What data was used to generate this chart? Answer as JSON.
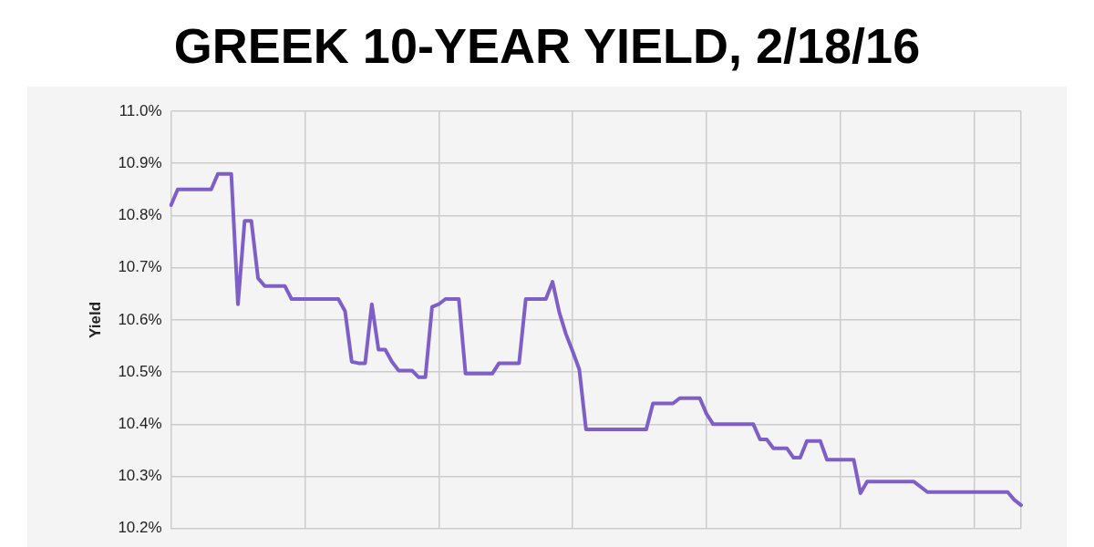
{
  "chart_data": {
    "type": "line",
    "title": "GREEK 10-YEAR YIELD, 2/18/16",
    "ylabel": "Yield",
    "categories": [
      null,
      null,
      null,
      null,
      null,
      null,
      null,
      null,
      null,
      null,
      null,
      null,
      null,
      null,
      null,
      null,
      null,
      null,
      null,
      null,
      null,
      null,
      null,
      null,
      null,
      null,
      null,
      null,
      null,
      null,
      null,
      null,
      null,
      null,
      null,
      null,
      null,
      null,
      null,
      null,
      null,
      null,
      null,
      null,
      null,
      null,
      null,
      null,
      null,
      null,
      null,
      null,
      null,
      null,
      null,
      null,
      null,
      null,
      null,
      null,
      null,
      null,
      null,
      null,
      null,
      null,
      null,
      null,
      null,
      null,
      null,
      null,
      null,
      null,
      null,
      null,
      null,
      null,
      null,
      null,
      null,
      null,
      null,
      null,
      null,
      null,
      null,
      null,
      null,
      null,
      null,
      null,
      null,
      null,
      null,
      null,
      null,
      null,
      null,
      null,
      null,
      null,
      null,
      null,
      null,
      null,
      null,
      null,
      null,
      null,
      null,
      null,
      null,
      null,
      null,
      null,
      null,
      null,
      null,
      null,
      null,
      null,
      null,
      null,
      null,
      null,
      null,
      null
    ],
    "series": [
      {
        "color": "#7e5fc8",
        "values": [
          10.82,
          10.85,
          10.85,
          10.85,
          10.85,
          10.85,
          10.85,
          10.88,
          10.88,
          10.88,
          10.63,
          10.79,
          10.79,
          10.68,
          10.665,
          10.665,
          10.665,
          10.665,
          10.64,
          10.64,
          10.64,
          10.64,
          10.64,
          10.64,
          10.64,
          10.64,
          10.617,
          10.52,
          10.517,
          10.517,
          10.63,
          10.543,
          10.543,
          10.52,
          10.503,
          10.503,
          10.503,
          10.49,
          10.49,
          10.625,
          10.63,
          10.64,
          10.64,
          10.64,
          10.497,
          10.497,
          10.497,
          10.497,
          10.497,
          10.517,
          10.517,
          10.517,
          10.517,
          10.64,
          10.64,
          10.64,
          10.64,
          10.673,
          10.615,
          10.573,
          10.54,
          10.505,
          10.39,
          10.39,
          10.39,
          10.39,
          10.39,
          10.39,
          10.39,
          10.39,
          10.39,
          10.39,
          10.44,
          10.44,
          10.44,
          10.44,
          10.45,
          10.45,
          10.45,
          10.45,
          10.42,
          10.4,
          10.4,
          10.4,
          10.4,
          10.4,
          10.4,
          10.4,
          10.371,
          10.371,
          10.354,
          10.354,
          10.354,
          10.336,
          10.336,
          10.368,
          10.368,
          10.368,
          10.332,
          10.332,
          10.332,
          10.332,
          10.332,
          10.268,
          10.29,
          10.29,
          10.29,
          10.29,
          10.29,
          10.29,
          10.29,
          10.29,
          10.28,
          10.27,
          10.27,
          10.27,
          10.27,
          10.27,
          10.27,
          10.27,
          10.27,
          10.27,
          10.27,
          10.27,
          10.27,
          10.27,
          10.255,
          10.245
        ]
      }
    ],
    "ylim": [
      10.2,
      11.0
    ],
    "yticks": [
      {
        "value": 10.2,
        "label": "10.2%"
      },
      {
        "value": 10.3,
        "label": "10.3%"
      },
      {
        "value": 10.4,
        "label": "10.4%"
      },
      {
        "value": 10.5,
        "label": "10.5%"
      },
      {
        "value": 10.6,
        "label": "10.6%"
      },
      {
        "value": 10.7,
        "label": "10.7%"
      },
      {
        "value": 10.8,
        "label": "10.8%"
      },
      {
        "value": 10.9,
        "label": "10.9%"
      },
      {
        "value": 11.0,
        "label": "11.0%"
      }
    ],
    "tick_labels": "y",
    "grid": true,
    "marker": "none",
    "line_style": "solid"
  }
}
